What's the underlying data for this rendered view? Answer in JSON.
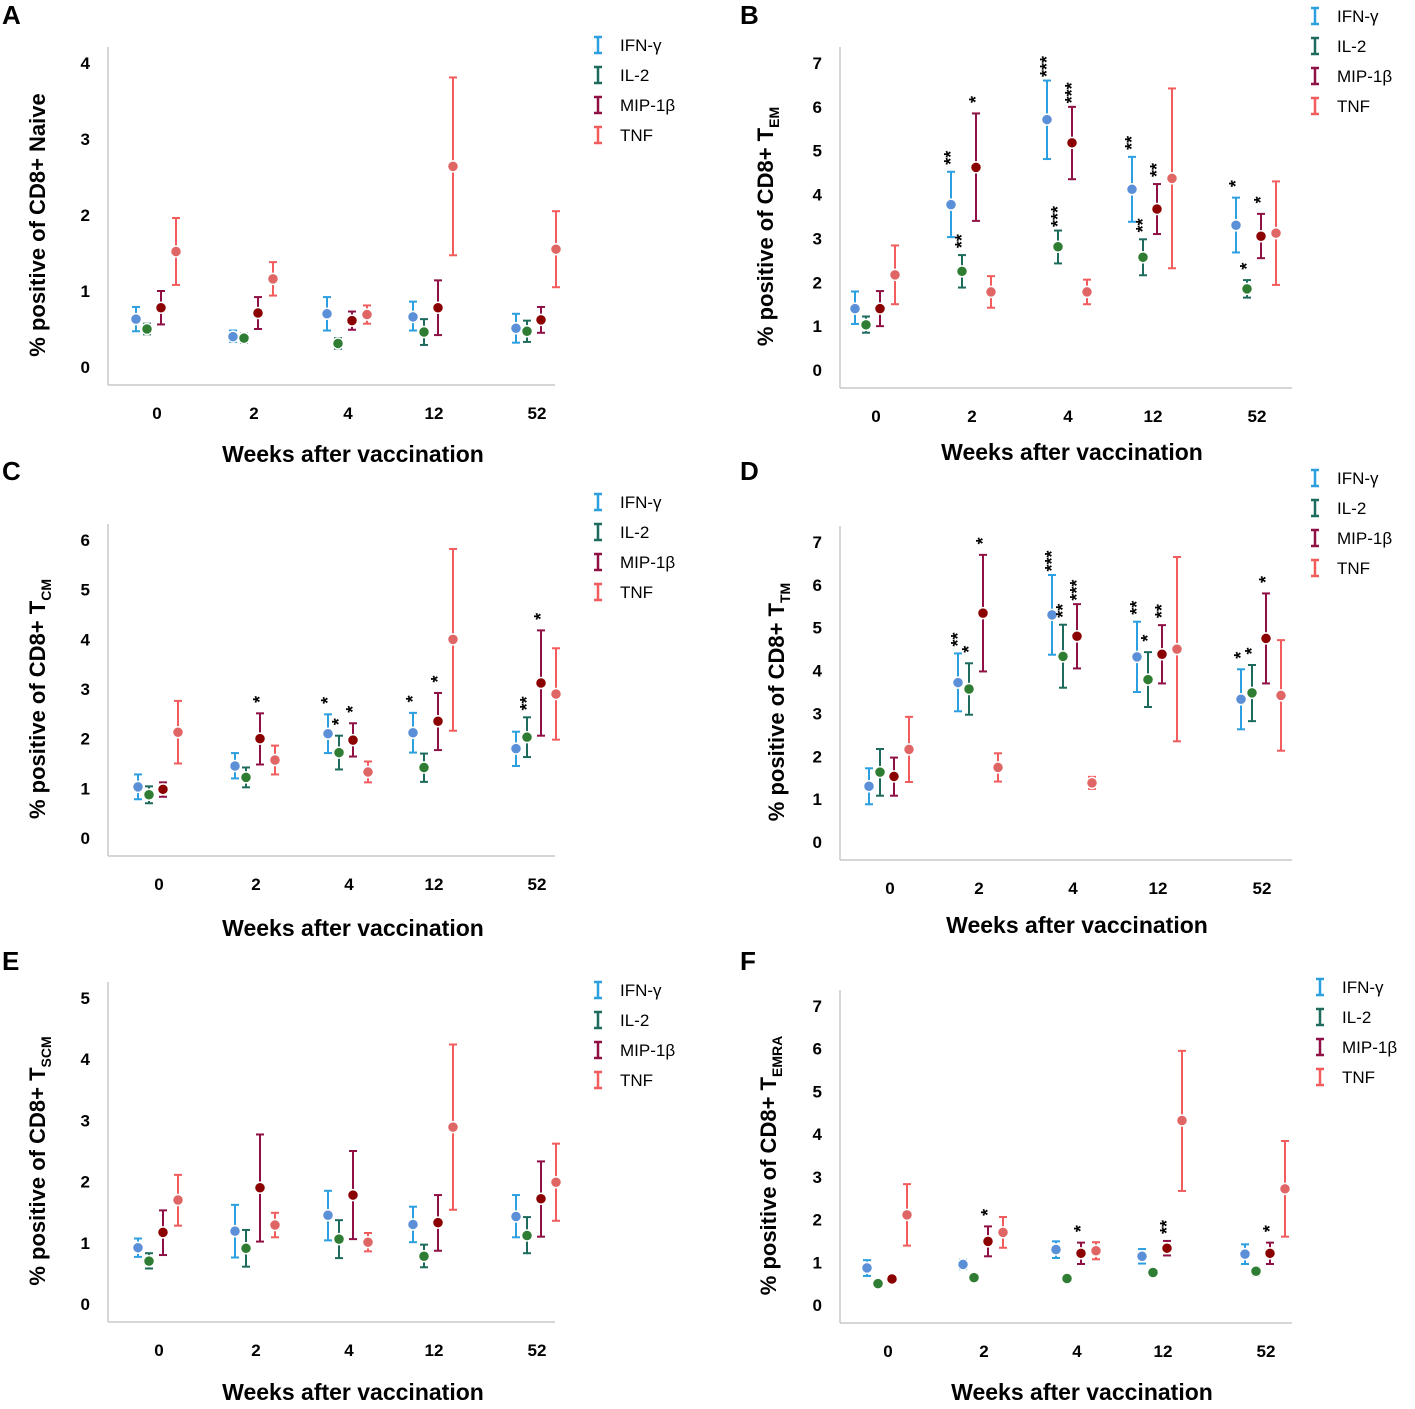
{
  "figure": {
    "xlabel": "Weeks after vaccination",
    "categories": [
      "0",
      "2",
      "4",
      "12",
      "52"
    ],
    "series_names": [
      "IFN-γ",
      "IL-2",
      "MIP-1β",
      "TNF"
    ],
    "colors": {
      "IFN-γ": {
        "line": "#2b9fe0",
        "dot": "#5b8fd8"
      },
      "IL-2": {
        "line": "#1d6b5c",
        "dot": "#2e7d32"
      },
      "MIP-1β": {
        "line": "#8e1045",
        "dot": "#8b0000"
      },
      "TNF": {
        "line": "#f25c5c",
        "dot": "#e06666"
      }
    }
  },
  "chart_data": [
    {
      "type": "scatter",
      "panel": "A",
      "title": "",
      "ylabel": "% positive of CD8+ Naive",
      "ylabel_sub": "",
      "xlabel": "Weeks after vaccination",
      "categories": [
        "0",
        "2",
        "4",
        "12",
        "52"
      ],
      "ylim": [
        0,
        4
      ],
      "yticks": [
        "0",
        "1",
        "2",
        "3",
        "4"
      ],
      "series": [
        {
          "name": "IFN-γ",
          "values": [
            0.63,
            0.4,
            0.7,
            0.66,
            0.51
          ],
          "lower": [
            0.47,
            0.33,
            0.48,
            0.48,
            0.32
          ],
          "upper": [
            0.79,
            0.48,
            0.92,
            0.86,
            0.7
          ],
          "sig": [
            "",
            "",
            "",
            "",
            ""
          ]
        },
        {
          "name": "IL-2",
          "values": [
            0.5,
            0.38,
            0.31,
            0.46,
            0.47
          ],
          "lower": [
            0.43,
            0.32,
            0.24,
            0.29,
            0.33
          ],
          "upper": [
            0.57,
            0.44,
            0.38,
            0.63,
            0.61
          ],
          "sig": [
            "",
            "",
            "",
            "",
            ""
          ]
        },
        {
          "name": "MIP-1β",
          "values": [
            0.78,
            0.71,
            0.61,
            0.78,
            0.62
          ],
          "lower": [
            0.56,
            0.5,
            0.49,
            0.42,
            0.45
          ],
          "upper": [
            1.0,
            0.92,
            0.73,
            1.14,
            0.79
          ],
          "sig": [
            "",
            "",
            "",
            "",
            ""
          ]
        },
        {
          "name": "TNF",
          "values": [
            1.52,
            1.16,
            0.69,
            2.64,
            1.55
          ],
          "lower": [
            1.08,
            0.94,
            0.57,
            1.47,
            1.05
          ],
          "upper": [
            1.96,
            1.38,
            0.81,
            3.81,
            2.05
          ],
          "sig": [
            "",
            "",
            "",
            "",
            ""
          ]
        }
      ]
    },
    {
      "type": "scatter",
      "panel": "B",
      "title": "",
      "ylabel": "% positive of CD8+ T",
      "ylabel_sub": "EM",
      "xlabel": "Weeks after vaccination",
      "categories": [
        "0",
        "2",
        "4",
        "12",
        "52"
      ],
      "ylim": [
        0,
        7
      ],
      "yticks": [
        "0",
        "1",
        "2",
        "3",
        "4",
        "5",
        "6",
        "7"
      ],
      "series": [
        {
          "name": "IFN-γ",
          "values": [
            1.4,
            3.77,
            5.71,
            4.12,
            3.3
          ],
          "lower": [
            1.05,
            3.03,
            4.81,
            3.38,
            2.68
          ],
          "upper": [
            1.79,
            4.52,
            6.6,
            4.86,
            3.93
          ],
          "sig": [
            "",
            "**",
            "***",
            "**",
            "*"
          ]
        },
        {
          "name": "IL-2",
          "values": [
            1.03,
            2.25,
            2.81,
            2.57,
            1.85
          ],
          "lower": [
            0.85,
            1.88,
            2.43,
            2.16,
            1.65
          ],
          "upper": [
            1.22,
            2.62,
            3.18,
            2.98,
            2.05
          ],
          "sig": [
            "",
            "**",
            "***",
            "**",
            "*"
          ]
        },
        {
          "name": "MIP-1β",
          "values": [
            1.4,
            4.62,
            5.18,
            3.67,
            3.05
          ],
          "lower": [
            1.0,
            3.4,
            4.35,
            3.1,
            2.55
          ],
          "upper": [
            1.8,
            5.85,
            6.0,
            4.24,
            3.56
          ],
          "sig": [
            "",
            "*",
            "***",
            "**",
            "*"
          ]
        },
        {
          "name": "TNF",
          "values": [
            2.17,
            1.78,
            1.78,
            4.37,
            3.12
          ],
          "lower": [
            1.5,
            1.42,
            1.5,
            2.32,
            1.94
          ],
          "upper": [
            2.84,
            2.14,
            2.06,
            6.42,
            4.3
          ],
          "sig": [
            "",
            "",
            "",
            "",
            ""
          ]
        }
      ]
    },
    {
      "type": "scatter",
      "panel": "C",
      "title": "",
      "ylabel": "% positive of CD8+ T",
      "ylabel_sub": "CM",
      "xlabel": "Weeks after vaccination",
      "categories": [
        "0",
        "2",
        "4",
        "12",
        "52"
      ],
      "ylim": [
        0,
        6
      ],
      "yticks": [
        "0",
        "1",
        "2",
        "3",
        "4",
        "5",
        "6"
      ],
      "series": [
        {
          "name": "IFN-γ",
          "values": [
            1.03,
            1.45,
            2.1,
            2.12,
            1.8
          ],
          "lower": [
            0.78,
            1.2,
            1.71,
            1.72,
            1.45
          ],
          "upper": [
            1.28,
            1.71,
            2.49,
            2.52,
            2.14
          ],
          "sig": [
            "",
            "",
            "*",
            "*",
            ""
          ]
        },
        {
          "name": "IL-2",
          "values": [
            0.87,
            1.22,
            1.72,
            1.42,
            2.03
          ],
          "lower": [
            0.7,
            1.02,
            1.38,
            1.13,
            1.63
          ],
          "upper": [
            1.04,
            1.42,
            2.06,
            1.7,
            2.43
          ],
          "sig": [
            "",
            "",
            "*",
            "",
            "**"
          ]
        },
        {
          "name": "MIP-1β",
          "values": [
            0.98,
            2.0,
            1.97,
            2.35,
            3.12
          ],
          "lower": [
            0.83,
            1.48,
            1.64,
            1.77,
            2.06
          ],
          "upper": [
            1.12,
            2.51,
            2.31,
            2.92,
            4.18
          ],
          "sig": [
            "",
            "*",
            "*",
            "*",
            "*"
          ]
        },
        {
          "name": "TNF",
          "values": [
            2.13,
            1.57,
            1.33,
            4.0,
            2.9
          ],
          "lower": [
            1.5,
            1.28,
            1.12,
            2.16,
            1.98
          ],
          "upper": [
            2.76,
            1.86,
            1.54,
            5.82,
            3.82
          ],
          "sig": [
            "",
            "",
            "",
            "",
            ""
          ]
        }
      ]
    },
    {
      "type": "scatter",
      "panel": "D",
      "title": "",
      "ylabel": "% positive of CD8+ T",
      "ylabel_sub": "TM",
      "xlabel": "Weeks after vaccination",
      "categories": [
        "0",
        "2",
        "4",
        "12",
        "52"
      ],
      "ylim": [
        0,
        7
      ],
      "yticks": [
        "0",
        "1",
        "2",
        "3",
        "4",
        "5",
        "6",
        "7"
      ],
      "series": [
        {
          "name": "IFN-γ",
          "values": [
            1.3,
            3.72,
            5.3,
            4.32,
            3.33
          ],
          "lower": [
            0.88,
            3.05,
            4.37,
            3.5,
            2.63
          ],
          "upper": [
            1.72,
            4.4,
            6.23,
            5.14,
            4.03
          ],
          "sig": [
            "",
            "**",
            "***",
            "**",
            "*"
          ]
        },
        {
          "name": "IL-2",
          "values": [
            1.63,
            3.57,
            4.33,
            3.79,
            3.48
          ],
          "lower": [
            1.08,
            2.97,
            3.6,
            3.15,
            2.82
          ],
          "upper": [
            2.17,
            4.17,
            5.07,
            4.43,
            4.13
          ],
          "sig": [
            "",
            "*",
            "**",
            "*",
            "*"
          ]
        },
        {
          "name": "MIP-1β",
          "values": [
            1.53,
            5.34,
            4.8,
            4.38,
            4.75
          ],
          "lower": [
            1.08,
            3.98,
            4.05,
            3.7,
            3.7
          ],
          "upper": [
            1.97,
            6.7,
            5.55,
            5.06,
            5.8
          ],
          "sig": [
            "",
            "*",
            "***",
            "**",
            "*"
          ]
        },
        {
          "name": "TNF",
          "values": [
            2.16,
            1.74,
            1.38,
            4.5,
            3.42
          ],
          "lower": [
            1.4,
            1.41,
            1.24,
            2.35,
            2.13
          ],
          "upper": [
            2.92,
            2.07,
            1.52,
            6.65,
            4.71
          ],
          "sig": [
            "",
            "",
            "",
            "",
            ""
          ]
        }
      ]
    },
    {
      "type": "scatter",
      "panel": "E",
      "title": "",
      "ylabel": "% positive of CD8+ T",
      "ylabel_sub": "SCM",
      "xlabel": "Weeks after vaccination",
      "categories": [
        "0",
        "2",
        "4",
        "12",
        "52"
      ],
      "ylim": [
        0,
        5
      ],
      "yticks": [
        "0",
        "1",
        "2",
        "3",
        "4",
        "5"
      ],
      "series": [
        {
          "name": "IFN-γ",
          "values": [
            0.92,
            1.19,
            1.45,
            1.3,
            1.43
          ],
          "lower": [
            0.77,
            0.76,
            1.04,
            1.01,
            1.09
          ],
          "upper": [
            1.07,
            1.62,
            1.85,
            1.59,
            1.78
          ],
          "sig": [
            "",
            "",
            "",
            "",
            ""
          ]
        },
        {
          "name": "IL-2",
          "values": [
            0.7,
            0.91,
            1.06,
            0.78,
            1.12
          ],
          "lower": [
            0.58,
            0.61,
            0.75,
            0.6,
            0.83
          ],
          "upper": [
            0.83,
            1.21,
            1.37,
            0.97,
            1.42
          ],
          "sig": [
            "",
            "",
            "",
            "",
            ""
          ]
        },
        {
          "name": "MIP-1β",
          "values": [
            1.17,
            1.9,
            1.78,
            1.33,
            1.72
          ],
          "lower": [
            0.8,
            1.02,
            1.06,
            0.87,
            1.1
          ],
          "upper": [
            1.53,
            2.77,
            2.5,
            1.78,
            2.33
          ],
          "sig": [
            "",
            "",
            "",
            "",
            ""
          ]
        },
        {
          "name": "TNF",
          "values": [
            1.7,
            1.29,
            1.01,
            2.89,
            1.99
          ],
          "lower": [
            1.28,
            1.09,
            0.86,
            1.54,
            1.36
          ],
          "upper": [
            2.11,
            1.49,
            1.16,
            4.24,
            2.62
          ],
          "sig": [
            "",
            "",
            "",
            "",
            ""
          ]
        }
      ]
    },
    {
      "type": "scatter",
      "panel": "F",
      "title": "",
      "ylabel": "% positive of CD8+ T",
      "ylabel_sub": "EMRA",
      "xlabel": "Weeks after vaccination",
      "categories": [
        "0",
        "2",
        "4",
        "12",
        "52"
      ],
      "ylim": [
        0,
        7
      ],
      "yticks": [
        "0",
        "1",
        "2",
        "3",
        "4",
        "5",
        "6",
        "7"
      ],
      "series": [
        {
          "name": "IFN-γ",
          "values": [
            0.87,
            0.95,
            1.3,
            1.14,
            1.19
          ],
          "lower": [
            0.68,
            0.84,
            1.1,
            0.97,
            0.96
          ],
          "upper": [
            1.05,
            1.06,
            1.49,
            1.31,
            1.42
          ],
          "sig": [
            "",
            "",
            "",
            "",
            ""
          ]
        },
        {
          "name": "IL-2",
          "values": [
            0.5,
            0.64,
            0.62,
            0.76,
            0.79
          ],
          "lower": [
            0.45,
            0.58,
            0.56,
            0.7,
            0.69
          ],
          "upper": [
            0.55,
            0.7,
            0.68,
            0.82,
            0.89
          ],
          "sig": [
            "",
            "",
            "",
            "",
            ""
          ]
        },
        {
          "name": "MIP-1β",
          "values": [
            0.61,
            1.49,
            1.21,
            1.33,
            1.21
          ],
          "lower": [
            0.55,
            1.14,
            0.96,
            1.16,
            0.96
          ],
          "upper": [
            0.66,
            1.84,
            1.46,
            1.5,
            1.46
          ],
          "sig": [
            "",
            "*",
            "*",
            "**",
            "*"
          ]
        },
        {
          "name": "TNF",
          "values": [
            2.11,
            1.7,
            1.27,
            4.32,
            2.72
          ],
          "lower": [
            1.39,
            1.34,
            1.07,
            2.67,
            1.6
          ],
          "upper": [
            2.83,
            2.06,
            1.47,
            5.95,
            3.84
          ],
          "sig": [
            "",
            "",
            "",
            "",
            ""
          ]
        }
      ]
    }
  ]
}
